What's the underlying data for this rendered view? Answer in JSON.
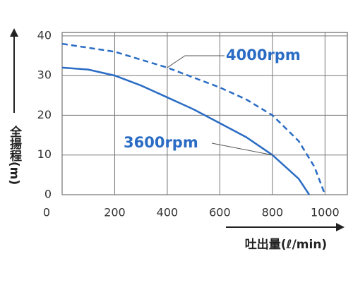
{
  "chart_data": {
    "type": "line",
    "x_label": "吐出量(ℓ/min)",
    "y_label": "全揚程(m)",
    "xlim": [
      0,
      1085
    ],
    "xticks": [
      0,
      200,
      400,
      600,
      800,
      1000
    ],
    "ylim": [
      0,
      40.5
    ],
    "yticks": [
      0,
      10,
      20,
      30,
      40
    ],
    "grid": true,
    "series": [
      {
        "name": "3600rpm",
        "color": "#2a6cc4",
        "dashed": false,
        "x": [
          0,
          100,
          200,
          300,
          400,
          500,
          600,
          700,
          800,
          900,
          940
        ],
        "values": [
          32,
          31.5,
          30,
          27.5,
          24.5,
          21.5,
          18,
          14.5,
          10,
          4,
          0
        ]
      },
      {
        "name": "4000rpm",
        "color": "#2a6cc4",
        "dashed": true,
        "x": [
          0,
          200,
          400,
          600,
          700,
          800,
          900,
          960,
          1000
        ],
        "values": [
          38,
          36,
          32,
          27,
          24,
          20,
          13.5,
          7,
          0
        ]
      }
    ]
  }
}
